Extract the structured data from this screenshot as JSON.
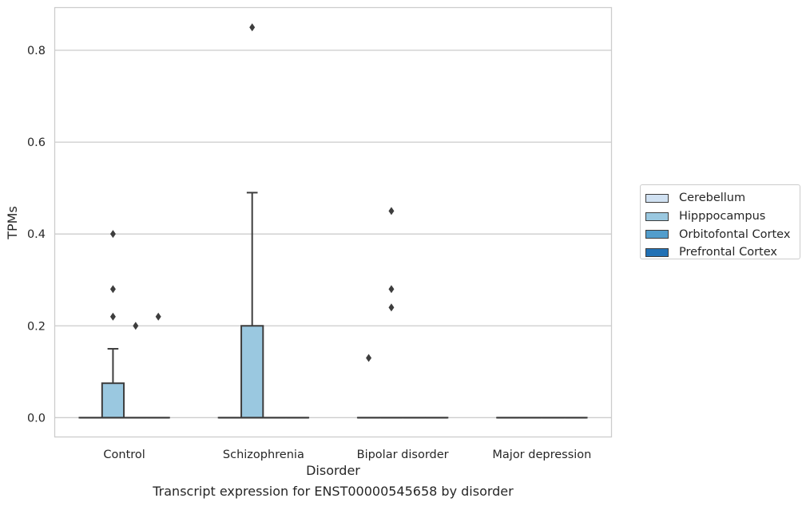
{
  "caption": "Transcript expression for ENST00000545658 by disorder",
  "colors": {
    "Cerebellum": "#d0e1f2",
    "Hipppocampus": "#9ac8e0",
    "Orbitofontal Cortex": "#529dcc",
    "Prefrontal Cortex": "#2171b5"
  },
  "legend": {
    "items": [
      {
        "label": "Cerebellum"
      },
      {
        "label": "Hipppocampus"
      },
      {
        "label": "Orbitofontal Cortex"
      },
      {
        "label": "Prefrontal Cortex"
      }
    ]
  },
  "chart_data": {
    "type": "box",
    "xlabel": "Disorder",
    "ylabel": "TPMs",
    "ylim": [
      -0.042,
      0.893
    ],
    "yticks": [
      "0.0",
      "0.2",
      "0.4",
      "0.6",
      "0.8"
    ],
    "categories": [
      "Control",
      "Schizophrenia",
      "Bipolar disorder",
      "Major depression"
    ],
    "grid": true,
    "legend_position": "right",
    "hue": [
      "Cerebellum",
      "Hipppocampus",
      "Orbitofontal Cortex",
      "Prefrontal Cortex"
    ],
    "boxes": [
      {
        "category": "Control",
        "series": "Cerebellum",
        "min": 0,
        "q1": 0,
        "median": 0,
        "q3": 0,
        "max": 0,
        "outliers": []
      },
      {
        "category": "Control",
        "series": "Hipppocampus",
        "min": 0,
        "q1": 0,
        "median": 0,
        "q3": 0.075,
        "max": 0.15,
        "outliers": [
          0.4,
          0.28,
          0.22
        ]
      },
      {
        "category": "Control",
        "series": "Orbitofontal Cortex",
        "min": 0,
        "q1": 0,
        "median": 0,
        "q3": 0,
        "max": 0,
        "outliers": [
          0.2
        ]
      },
      {
        "category": "Control",
        "series": "Prefrontal Cortex",
        "min": 0,
        "q1": 0,
        "median": 0,
        "q3": 0,
        "max": 0,
        "outliers": [
          0.22
        ]
      },
      {
        "category": "Schizophrenia",
        "series": "Cerebellum",
        "min": 0,
        "q1": 0,
        "median": 0,
        "q3": 0,
        "max": 0,
        "outliers": []
      },
      {
        "category": "Schizophrenia",
        "series": "Hipppocampus",
        "min": 0,
        "q1": 0,
        "median": 0,
        "q3": 0.2,
        "max": 0.49,
        "outliers": [
          0.85
        ]
      },
      {
        "category": "Schizophrenia",
        "series": "Orbitofontal Cortex",
        "min": 0,
        "q1": 0,
        "median": 0,
        "q3": 0,
        "max": 0,
        "outliers": []
      },
      {
        "category": "Schizophrenia",
        "series": "Prefrontal Cortex",
        "min": 0,
        "q1": 0,
        "median": 0,
        "q3": 0,
        "max": 0,
        "outliers": []
      },
      {
        "category": "Bipolar disorder",
        "series": "Cerebellum",
        "min": 0,
        "q1": 0,
        "median": 0,
        "q3": 0,
        "max": 0,
        "outliers": [
          0.13
        ]
      },
      {
        "category": "Bipolar disorder",
        "series": "Hipppocampus",
        "min": 0,
        "q1": 0,
        "median": 0,
        "q3": 0,
        "max": 0,
        "outliers": [
          0.45,
          0.28,
          0.24
        ]
      },
      {
        "category": "Bipolar disorder",
        "series": "Orbitofontal Cortex",
        "min": 0,
        "q1": 0,
        "median": 0,
        "q3": 0,
        "max": 0,
        "outliers": []
      },
      {
        "category": "Bipolar disorder",
        "series": "Prefrontal Cortex",
        "min": 0,
        "q1": 0,
        "median": 0,
        "q3": 0,
        "max": 0,
        "outliers": []
      },
      {
        "category": "Major depression",
        "series": "Cerebellum",
        "min": 0,
        "q1": 0,
        "median": 0,
        "q3": 0,
        "max": 0,
        "outliers": []
      },
      {
        "category": "Major depression",
        "series": "Hipppocampus",
        "min": 0,
        "q1": 0,
        "median": 0,
        "q3": 0,
        "max": 0,
        "outliers": []
      },
      {
        "category": "Major depression",
        "series": "Orbitofontal Cortex",
        "min": 0,
        "q1": 0,
        "median": 0,
        "q3": 0,
        "max": 0,
        "outliers": []
      },
      {
        "category": "Major depression",
        "series": "Prefrontal Cortex",
        "min": 0,
        "q1": 0,
        "median": 0,
        "q3": 0,
        "max": 0,
        "outliers": []
      }
    ]
  }
}
